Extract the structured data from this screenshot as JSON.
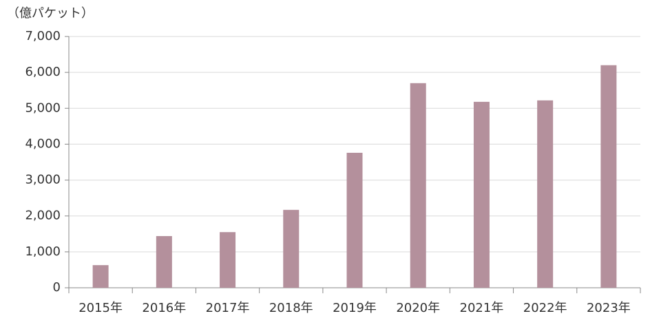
{
  "chart_data": {
    "type": "bar",
    "y_axis_label": "（億パケット）",
    "categories": [
      "2015年",
      "2016年",
      "2017年",
      "2018年",
      "2019年",
      "2020年",
      "2021年",
      "2022年",
      "2023年"
    ],
    "values": [
      630,
      1440,
      1550,
      2170,
      3760,
      5700,
      5180,
      5220,
      6200
    ],
    "color": "#b4909c",
    "ylim": [
      0,
      7000
    ],
    "yticks": [
      0,
      {
        "value": 1000,
        "label": "1,000"
      },
      {
        "value": 2000,
        "label": "2,000"
      },
      {
        "value": 3000,
        "label": "3,000"
      },
      {
        "value": 4000,
        "label": "4,000"
      },
      {
        "value": 5000,
        "label": "5,000"
      },
      {
        "value": 6000,
        "label": "6,000"
      },
      {
        "value": 7000,
        "label": "7,000"
      }
    ],
    "grid": true
  }
}
